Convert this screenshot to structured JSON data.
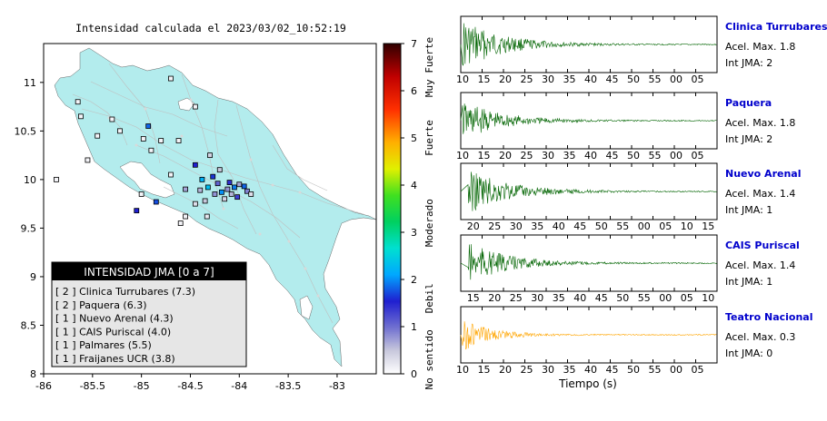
{
  "map_title": "Intensidad calculada el 2023/03/02_10:52:19",
  "colorbar": {
    "ticks": [
      "0",
      "1",
      "2",
      "3",
      "4",
      "5",
      "6",
      "7"
    ],
    "categories": [
      "No sentido",
      "Debil",
      "Moderado",
      "Fuerte",
      "Muy Fuerte"
    ]
  },
  "legend": {
    "title": "INTENSIDAD JMA [0 a 7]",
    "items": [
      "[ 2 ]  Clinica Turrubares (7.3)",
      "[ 2 ]  Paquera (6.3)",
      "[ 1 ]  Nuevo Arenal (4.3)",
      "[ 1 ]  CAIS Puriscal (4.0)",
      "[ 1 ]  Palmares (5.5)",
      "[ 1 ]  Fraijanes UCR (3.8)"
    ]
  },
  "chart_data": [
    {
      "type": "scatter",
      "title": "Intensidad calculada el 2023/03/02_10:52:19",
      "xlim": [
        -86,
        -82.6
      ],
      "ylim": [
        8,
        11.4
      ],
      "x_ticks": [
        "-86",
        "-85.5",
        "-85",
        "-84.5",
        "-84",
        "-83.5",
        "-83"
      ],
      "y_ticks": [
        "8",
        "8.5",
        "9",
        "9.5",
        "10",
        "10.5",
        "11"
      ],
      "series": [
        {
          "name": "",
          "points": [
            {
              "lon": -84.32,
              "lat": 9.92,
              "i": 2.3
            },
            {
              "lon": -84.38,
              "lat": 10.0,
              "i": 2.2
            },
            {
              "lon": -84.18,
              "lat": 9.87,
              "i": 2.0
            },
            {
              "lon": -84.05,
              "lat": 9.92,
              "i": 1.9
            },
            {
              "lon": -83.95,
              "lat": 9.93,
              "i": 1.8
            },
            {
              "lon": -84.1,
              "lat": 9.97,
              "i": 1.4
            },
            {
              "lon": -84.22,
              "lat": 9.96,
              "i": 1.1
            },
            {
              "lon": -84.02,
              "lat": 9.82,
              "i": 1.3
            },
            {
              "lon": -84.27,
              "lat": 10.03,
              "i": 1.6
            },
            {
              "lon": -84.85,
              "lat": 9.77,
              "i": 1.7
            },
            {
              "lon": -85.05,
              "lat": 9.68,
              "i": 1.5
            },
            {
              "lon": -84.93,
              "lat": 10.55,
              "i": 1.8
            },
            {
              "lon": -84.45,
              "lat": 10.15,
              "i": 1.5
            },
            {
              "lon": -84.12,
              "lat": 9.9,
              "i": 0.8
            },
            {
              "lon": -84.0,
              "lat": 9.95,
              "i": 0.7
            },
            {
              "lon": -83.92,
              "lat": 9.88,
              "i": 0.9
            },
            {
              "lon": -84.4,
              "lat": 9.89,
              "i": 0.6
            },
            {
              "lon": -84.55,
              "lat": 9.9,
              "i": 0.7
            },
            {
              "lon": -84.2,
              "lat": 10.1,
              "i": 0.5
            },
            {
              "lon": -84.3,
              "lat": 10.25,
              "i": 0.4
            },
            {
              "lon": -84.25,
              "lat": 9.85,
              "i": 0.8
            },
            {
              "lon": -84.08,
              "lat": 9.85,
              "i": 0.6
            },
            {
              "lon": -84.15,
              "lat": 9.8,
              "i": 0.4
            },
            {
              "lon": -83.88,
              "lat": 9.85,
              "i": 0.3
            },
            {
              "lon": -84.35,
              "lat": 9.78,
              "i": 0.5
            },
            {
              "lon": -84.45,
              "lat": 9.75,
              "i": 0.3
            },
            {
              "lon": -84.33,
              "lat": 9.62,
              "i": 0.2
            },
            {
              "lon": -84.6,
              "lat": 9.55,
              "i": 0.1
            },
            {
              "lon": -84.7,
              "lat": 10.05,
              "i": 0.1
            },
            {
              "lon": -84.8,
              "lat": 10.4,
              "i": 0.1
            },
            {
              "lon": -84.98,
              "lat": 10.42,
              "i": 0.1
            },
            {
              "lon": -85.3,
              "lat": 10.62,
              "i": 0.1
            },
            {
              "lon": -85.55,
              "lat": 10.2,
              "i": 0.1
            },
            {
              "lon": -85.62,
              "lat": 10.65,
              "i": 0.1
            },
            {
              "lon": -85.22,
              "lat": 10.5,
              "i": 0.1
            },
            {
              "lon": -85.45,
              "lat": 10.45,
              "i": 0.1
            },
            {
              "lon": -85.65,
              "lat": 10.8,
              "i": 0.1
            },
            {
              "lon": -84.7,
              "lat": 11.04,
              "i": 0.1
            },
            {
              "lon": -84.45,
              "lat": 10.75,
              "i": 0.1
            },
            {
              "lon": -84.9,
              "lat": 10.3,
              "i": 0.1
            },
            {
              "lon": -85.0,
              "lat": 9.85,
              "i": 0.1
            },
            {
              "lon": -84.62,
              "lat": 10.4,
              "i": 0.1
            },
            {
              "lon": -84.55,
              "lat": 9.62,
              "i": 0.1
            },
            {
              "lon": -85.87,
              "lat": 10.0,
              "i": 0.1
            }
          ]
        }
      ]
    },
    {
      "type": "line",
      "title": "Clinica Turrubares",
      "x_ticks": [
        "10",
        "15",
        "20",
        "25",
        "30",
        "35",
        "40",
        "45",
        "50",
        "55",
        "00",
        "05"
      ],
      "annotations": [
        "Acel. Max. 1.8",
        "Int JMA: 2"
      ],
      "color": "#006400"
    },
    {
      "type": "line",
      "title": "Paquera",
      "x_ticks": [
        "10",
        "15",
        "20",
        "25",
        "30",
        "35",
        "40",
        "45",
        "50",
        "55",
        "00",
        "05"
      ],
      "annotations": [
        "Acel. Max. 1.8",
        "Int JMA: 2"
      ],
      "color": "#006400"
    },
    {
      "type": "line",
      "title": "Nuevo Arenal",
      "x_ticks": [
        "20",
        "25",
        "30",
        "35",
        "40",
        "45",
        "50",
        "55",
        "00",
        "05",
        "10",
        "15"
      ],
      "annotations": [
        "Acel. Max. 1.4",
        "Int JMA: 1"
      ],
      "color": "#006400"
    },
    {
      "type": "line",
      "title": "CAIS Puriscal",
      "x_ticks": [
        "15",
        "20",
        "25",
        "30",
        "35",
        "40",
        "45",
        "50",
        "55",
        "00",
        "05",
        "10"
      ],
      "annotations": [
        "Acel. Max. 1.4",
        "Int JMA: 1"
      ],
      "color": "#006400"
    },
    {
      "type": "line",
      "title": "Teatro Nacional",
      "x_ticks": [
        "10",
        "15",
        "20",
        "25",
        "30",
        "35",
        "40",
        "45",
        "50",
        "55",
        "00",
        "05"
      ],
      "annotations": [
        "Acel. Max. 0.3",
        "Int JMA: 0"
      ],
      "color": "#ffa500",
      "xlabel": "Tiempo (s)"
    }
  ],
  "station_title_color": "#0000cc",
  "land_color": "#b3eced"
}
